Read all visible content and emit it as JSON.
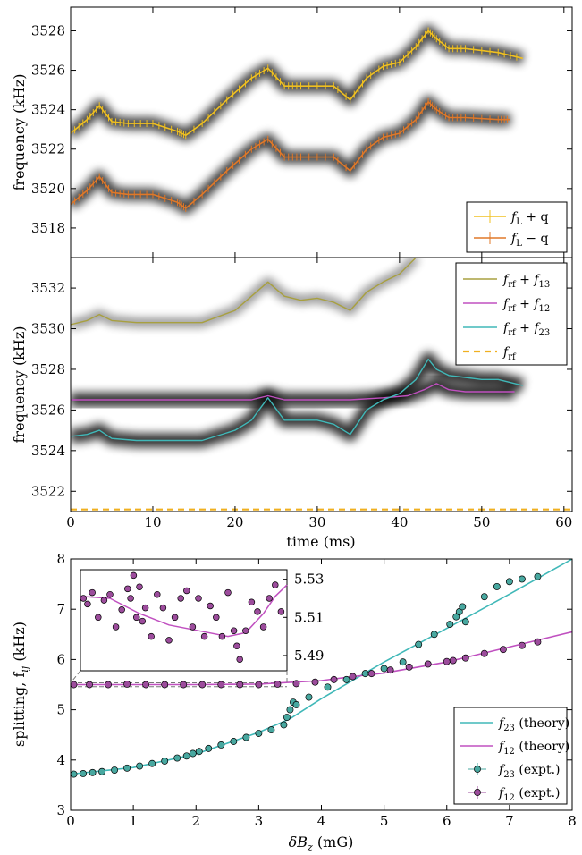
{
  "chart_data": [
    {
      "panel": "top",
      "type": "line",
      "ylabel": "frequency (kHz)",
      "xlim": [
        0,
        61
      ],
      "ylim": [
        3516.5,
        3529.2
      ],
      "yticks": [
        3518,
        3520,
        3522,
        3524,
        3526,
        3528
      ],
      "legend_position": "lower-right",
      "colors": {
        "upper": "#f0c020",
        "lower": "#e07828",
        "band": "#000000"
      },
      "series": [
        {
          "name": "f_L + q",
          "legend": {
            "f": "f",
            "sub": "L",
            "rest": " + q"
          },
          "x": [
            0,
            2,
            3.5,
            5,
            7,
            10,
            13,
            14,
            16,
            19,
            22,
            24,
            26,
            28,
            32,
            34,
            36,
            38,
            40,
            42,
            43.5,
            44.5,
            46,
            48,
            52,
            55
          ],
          "y": [
            3522.8,
            3523.5,
            3524.2,
            3523.4,
            3523.3,
            3523.3,
            3522.9,
            3522.7,
            3523.3,
            3524.5,
            3525.6,
            3526.1,
            3525.2,
            3525.2,
            3525.2,
            3524.5,
            3525.6,
            3526.2,
            3526.4,
            3527.2,
            3528.0,
            3527.6,
            3527.1,
            3527.1,
            3526.9,
            3526.6
          ]
        },
        {
          "name": "f_L - q",
          "legend": {
            "f": "f",
            "sub": "L",
            "rest": " − q"
          },
          "x": [
            0,
            2,
            3.5,
            5,
            7,
            10,
            13,
            14,
            16,
            19,
            22,
            24,
            26,
            28,
            32,
            34,
            36,
            38,
            40,
            42,
            43.5,
            44.5,
            46,
            48,
            52,
            53.5
          ],
          "y": [
            3519.2,
            3519.9,
            3520.6,
            3519.8,
            3519.7,
            3519.7,
            3519.3,
            3519.0,
            3519.7,
            3520.9,
            3522.0,
            3522.5,
            3521.6,
            3521.6,
            3521.6,
            3520.9,
            3522.0,
            3522.6,
            3522.8,
            3523.5,
            3524.4,
            3524.0,
            3523.6,
            3523.6,
            3523.5,
            3523.5
          ]
        }
      ]
    },
    {
      "panel": "middle",
      "type": "line",
      "xlabel": "time (ms)",
      "ylabel": "frequency (kHz)",
      "xlim": [
        0,
        61
      ],
      "ylim": [
        3521,
        3533.5
      ],
      "xticks": [
        0,
        10,
        20,
        30,
        40,
        50,
        60
      ],
      "yticks": [
        3522,
        3524,
        3526,
        3528,
        3530,
        3532
      ],
      "legend_position": "upper-right",
      "colors": {
        "f13": "#a8a040",
        "f12": "#c050c0",
        "f23": "#40b8b8",
        "frf": "#f0b020"
      },
      "series": [
        {
          "name": "f_rf + f_13",
          "legend": {
            "f": "f",
            "sub": "rf",
            "rest": " + ",
            "f2": "f",
            "sub2": "13"
          },
          "x": [
            0,
            2,
            3.5,
            5,
            8,
            12,
            16,
            20,
            22,
            24,
            26,
            28,
            30,
            32,
            34,
            36,
            38,
            40,
            42
          ],
          "y": [
            3530.2,
            3530.4,
            3530.7,
            3530.4,
            3530.3,
            3530.3,
            3530.3,
            3530.9,
            3531.6,
            3532.3,
            3531.6,
            3531.4,
            3531.5,
            3531.3,
            3530.9,
            3531.8,
            3532.3,
            3532.7,
            3533.5
          ]
        },
        {
          "name": "f_rf + f_12",
          "legend": {
            "f": "f",
            "sub": "rf",
            "rest": " + ",
            "f2": "f",
            "sub2": "12"
          },
          "x": [
            0,
            10,
            20,
            22,
            24,
            26,
            30,
            34,
            38,
            41,
            43,
            44.5,
            46,
            48,
            50,
            52,
            54
          ],
          "y": [
            3526.5,
            3526.5,
            3526.5,
            3526.5,
            3526.7,
            3526.5,
            3526.5,
            3526.5,
            3526.6,
            3526.7,
            3527.0,
            3527.3,
            3527.0,
            3526.9,
            3526.9,
            3526.9,
            3526.9
          ]
        },
        {
          "name": "f_rf + f_23",
          "legend": {
            "f": "f",
            "sub": "rf",
            "rest": " + ",
            "f2": "f",
            "sub2": "23"
          },
          "x": [
            0,
            2,
            3.5,
            5,
            8,
            12,
            16,
            20,
            22,
            24,
            26,
            28,
            30,
            32,
            34,
            36,
            38,
            40,
            42,
            43.5,
            44.5,
            46,
            48,
            50,
            52,
            55
          ],
          "y": [
            3524.7,
            3524.8,
            3525.0,
            3524.6,
            3524.5,
            3524.5,
            3524.5,
            3525.0,
            3525.5,
            3526.6,
            3525.5,
            3525.5,
            3525.5,
            3525.3,
            3524.8,
            3526.0,
            3526.5,
            3526.8,
            3527.5,
            3528.5,
            3528.0,
            3527.7,
            3527.6,
            3527.5,
            3527.5,
            3527.2
          ]
        },
        {
          "name": "f_rf",
          "legend": {
            "f": "f",
            "sub": "rf",
            "rest": ""
          },
          "dashed": true,
          "x": [
            0,
            61
          ],
          "y": [
            3521.1,
            3521.1
          ]
        }
      ]
    },
    {
      "panel": "bottom",
      "type": "scatter",
      "xlabel": "δB_z (mG)",
      "xlabel_parts": {
        "main": "δB",
        "sub": "z",
        "rest": " (mG)"
      },
      "ylabel": "splitting, f_ij (kHz)",
      "ylabel_parts": {
        "main": "splitting, f",
        "sub": "ij",
        "rest": " (kHz)"
      },
      "xlim": [
        0,
        8
      ],
      "ylim": [
        3,
        8
      ],
      "xticks": [
        0,
        1,
        2,
        3,
        4,
        5,
        6,
        7,
        8
      ],
      "yticks": [
        3,
        4,
        5,
        6,
        7,
        8
      ],
      "legend_position": "lower-right",
      "colors": {
        "f23": "#40b8b8",
        "f12": "#c050c0",
        "f23_marker": "#48a8a0",
        "f12_marker": "#9c4c9c"
      },
      "series": [
        {
          "name": "f_23 (theory)",
          "legend": {
            "f": "f",
            "sub": "23",
            "rest": " (theory)"
          },
          "kind": "line",
          "x": [
            0,
            1,
            2,
            3,
            3.5,
            4,
            5,
            6,
            7,
            8
          ],
          "y": [
            3.72,
            3.85,
            4.12,
            4.55,
            4.82,
            5.22,
            5.95,
            6.62,
            7.3,
            8.0
          ]
        },
        {
          "name": "f_12 (theory)",
          "legend": {
            "f": "f",
            "sub": "12",
            "rest": " (theory)"
          },
          "kind": "line",
          "x": [
            0,
            1,
            2,
            3,
            4,
            4.5,
            5,
            6,
            7,
            8
          ],
          "y": [
            5.5,
            5.5,
            5.5,
            5.51,
            5.58,
            5.66,
            5.73,
            5.95,
            6.25,
            6.55
          ]
        },
        {
          "name": "f_23 (expt.)",
          "legend": {
            "f": "f",
            "sub": "23",
            "rest": " (expt.)"
          },
          "kind": "markers",
          "x": [
            0.05,
            0.2,
            0.35,
            0.5,
            0.7,
            0.9,
            1.1,
            1.3,
            1.5,
            1.7,
            1.85,
            1.95,
            2.05,
            2.2,
            2.4,
            2.6,
            2.8,
            3.0,
            3.2,
            3.4,
            3.45,
            3.5,
            3.55,
            3.6,
            3.8,
            4.1,
            4.4,
            4.7,
            5.0,
            5.3,
            5.55,
            5.8,
            6.05,
            6.15,
            6.2,
            6.25,
            6.3,
            6.6,
            6.8,
            7.0,
            7.2,
            7.45
          ],
          "y": [
            3.72,
            3.73,
            3.75,
            3.77,
            3.8,
            3.84,
            3.88,
            3.93,
            3.98,
            4.04,
            4.08,
            4.13,
            4.17,
            4.23,
            4.3,
            4.37,
            4.45,
            4.53,
            4.6,
            4.7,
            4.85,
            5.0,
            5.15,
            5.1,
            5.25,
            5.45,
            5.6,
            5.72,
            5.82,
            5.95,
            6.3,
            6.5,
            6.7,
            6.85,
            6.95,
            7.05,
            6.75,
            7.25,
            7.45,
            7.55,
            7.6,
            7.65
          ]
        },
        {
          "name": "f_12 (expt.)",
          "legend": {
            "f": "f",
            "sub": "12",
            "rest": " (expt.)"
          },
          "kind": "markers",
          "x": [
            0.05,
            0.3,
            0.6,
            0.9,
            1.2,
            1.5,
            1.8,
            2.1,
            2.4,
            2.7,
            3.0,
            3.3,
            3.6,
            3.9,
            4.2,
            4.5,
            4.8,
            5.1,
            5.4,
            5.7,
            6.0,
            6.1,
            6.3,
            6.6,
            6.9,
            7.2,
            7.45
          ],
          "y": [
            5.5,
            5.5,
            5.5,
            5.51,
            5.5,
            5.5,
            5.5,
            5.5,
            5.5,
            5.5,
            5.5,
            5.51,
            5.52,
            5.55,
            5.6,
            5.66,
            5.72,
            5.79,
            5.85,
            5.91,
            5.96,
            5.98,
            6.03,
            6.12,
            6.2,
            6.28,
            6.35
          ]
        }
      ],
      "inset": {
        "yticks": [
          5.49,
          5.51,
          5.53
        ],
        "ylim": [
          5.482,
          5.535
        ],
        "xlim": [
          0,
          3.5
        ],
        "theory": {
          "x": [
            0,
            0.5,
            1,
            1.5,
            2,
            2.5,
            2.8,
            3.1,
            3.3,
            3.5
          ],
          "y": [
            5.521,
            5.52,
            5.512,
            5.506,
            5.503,
            5.5,
            5.502,
            5.512,
            5.521,
            5.527
          ]
        },
        "points": {
          "x": [
            0.05,
            0.12,
            0.2,
            0.3,
            0.4,
            0.5,
            0.6,
            0.7,
            0.8,
            0.85,
            0.9,
            0.95,
            1.0,
            1.05,
            1.1,
            1.2,
            1.3,
            1.4,
            1.5,
            1.6,
            1.7,
            1.8,
            1.9,
            2.0,
            2.1,
            2.2,
            2.3,
            2.4,
            2.5,
            2.6,
            2.65,
            2.7,
            2.8,
            2.9,
            3.0,
            3.1,
            3.2,
            3.3,
            3.4
          ],
          "y": [
            5.52,
            5.517,
            5.523,
            5.51,
            5.519,
            5.522,
            5.505,
            5.514,
            5.525,
            5.52,
            5.532,
            5.51,
            5.526,
            5.508,
            5.515,
            5.5,
            5.522,
            5.515,
            5.498,
            5.51,
            5.52,
            5.524,
            5.505,
            5.52,
            5.5,
            5.516,
            5.51,
            5.5,
            5.523,
            5.503,
            5.495,
            5.488,
            5.503,
            5.518,
            5.513,
            5.505,
            5.52,
            5.527,
            5.513
          ]
        }
      }
    }
  ]
}
